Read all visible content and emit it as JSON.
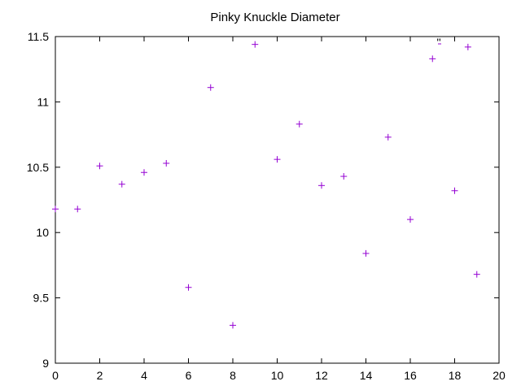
{
  "chart_data": {
    "type": "scatter",
    "title": "Pinky Knuckle Diameter",
    "xlabel": "",
    "ylabel": "",
    "xlim": [
      0,
      20
    ],
    "ylim": [
      9,
      11.5
    ],
    "x_ticks": [
      "0",
      "2",
      "4",
      "6",
      "8",
      "10",
      "12",
      "14",
      "16",
      "18",
      "20"
    ],
    "y_ticks": [
      "9",
      "9.5",
      "10",
      "10.5",
      "11",
      "11.5"
    ],
    "grid": false,
    "legend": "top-right",
    "marker": "plus",
    "series": [
      {
        "name": "''",
        "color": "#9400d3",
        "x": [
          0,
          1,
          2,
          3,
          4,
          5,
          6,
          7,
          8,
          9,
          10,
          11,
          12,
          13,
          14,
          15,
          16,
          17,
          18,
          19
        ],
        "y": [
          10.18,
          10.18,
          10.51,
          10.37,
          10.46,
          10.53,
          9.58,
          11.11,
          9.29,
          11.44,
          10.56,
          10.83,
          10.36,
          10.43,
          9.84,
          10.73,
          10.1,
          11.33,
          10.32,
          9.68
        ]
      }
    ],
    "extra_points": [
      {
        "x": 18.6,
        "y": 11.42
      }
    ]
  }
}
